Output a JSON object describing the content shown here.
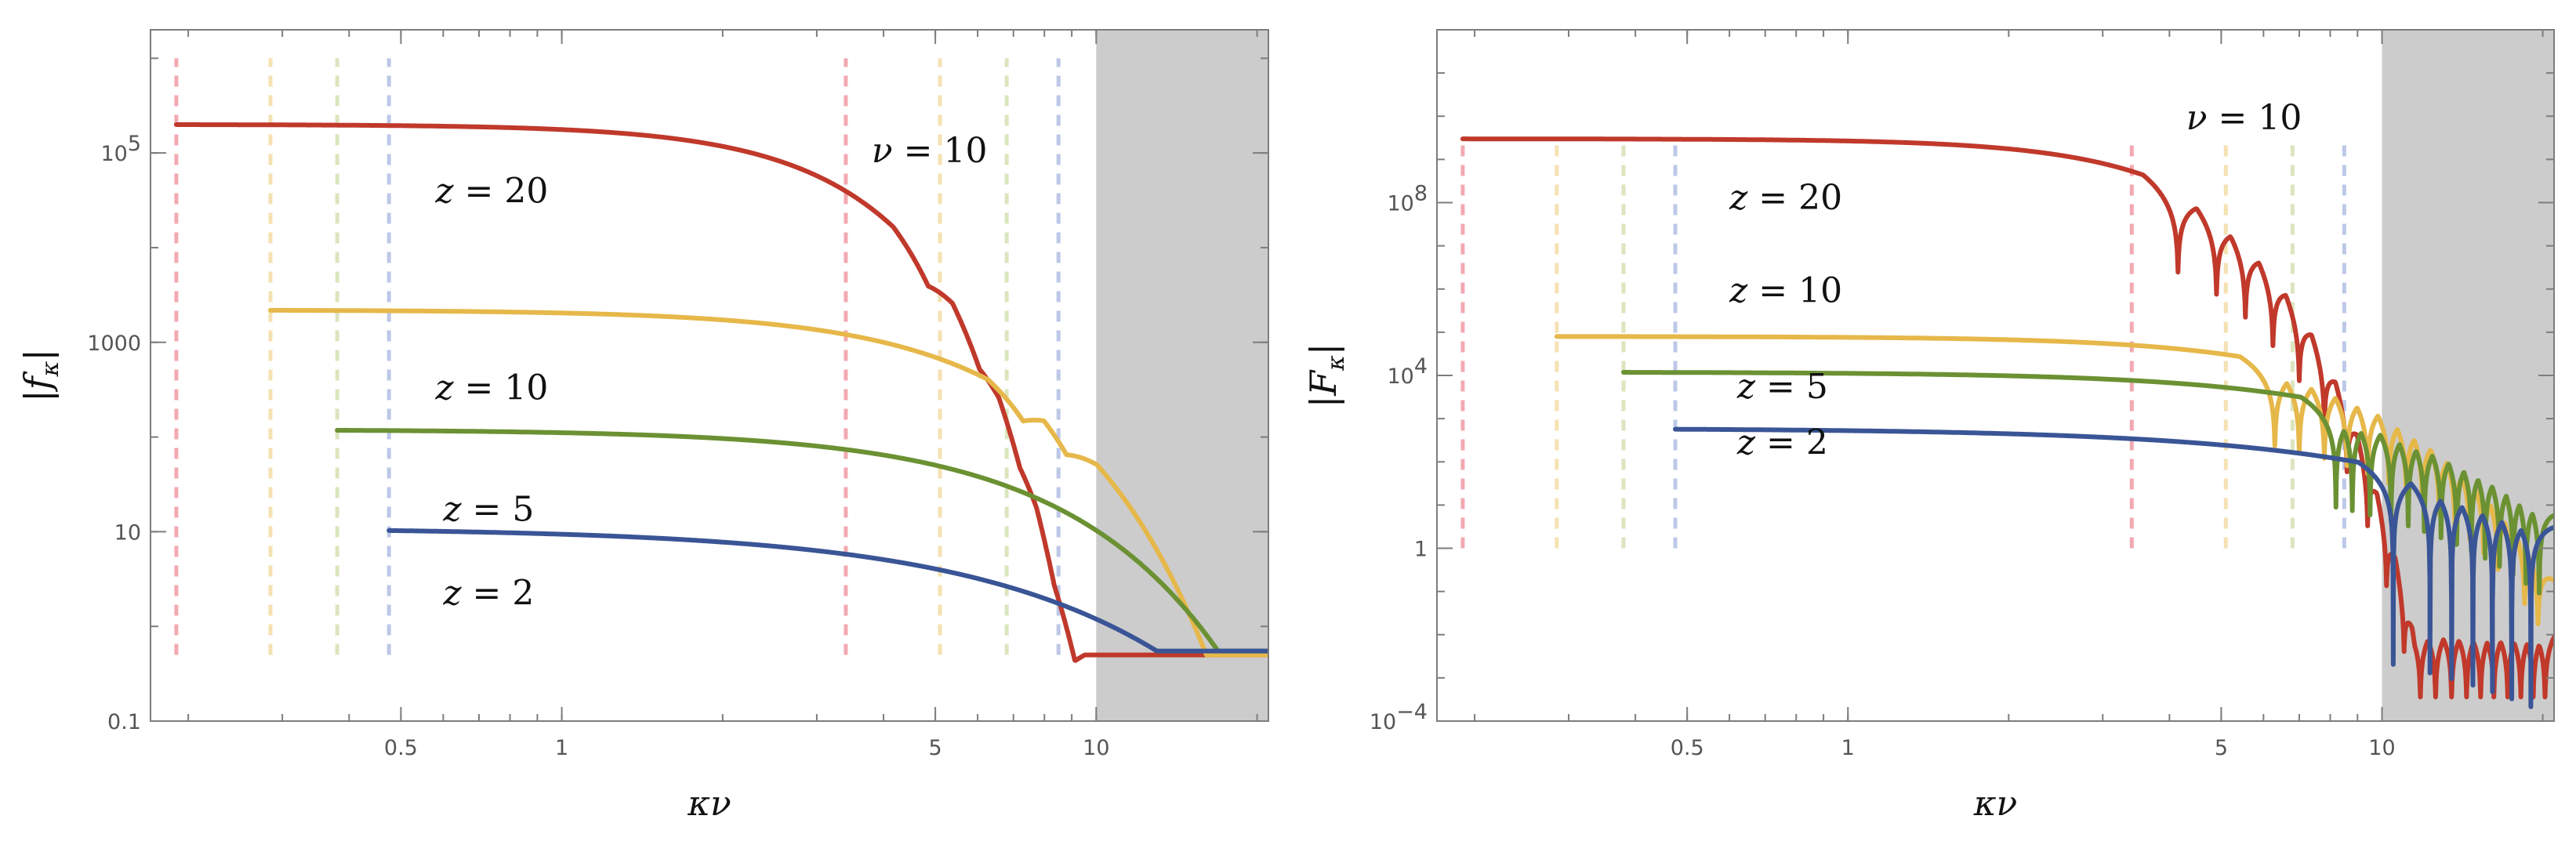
{
  "chart_data": [
    {
      "type": "line",
      "xscale": "log",
      "yscale": "log",
      "xlim": [
        0.17,
        21
      ],
      "ylim": [
        0.1,
        2000000
      ],
      "xticks": [
        {
          "v": 0.5,
          "label": "0.5"
        },
        {
          "v": 1,
          "label": "1"
        },
        {
          "v": 5,
          "label": "5"
        },
        {
          "v": 10,
          "label": "10"
        }
      ],
      "yticks": [
        {
          "v": 0.1,
          "label": "0.1"
        },
        {
          "v": 10,
          "label": "10"
        },
        {
          "v": 1000,
          "label": "1000"
        },
        {
          "v": 100000,
          "label": "10",
          "sup": "5"
        }
      ],
      "xlabel": {
        "a": "κ",
        "b": "ν"
      },
      "ylabel": {
        "bar": "|",
        "sym": "f",
        "sub": "κ"
      },
      "annotation": {
        "lhs": "ν",
        "eq": " = ",
        "rhs": "10",
        "x": 3.8,
        "y": 80000
      },
      "shaded_region": {
        "x_from": 10,
        "x_to": 21,
        "color": "#cccccc"
      },
      "vlines": [
        {
          "x": 0.19,
          "color": "#f2a0aa",
          "y_from": 0.5,
          "y_to": 1000000
        },
        {
          "x": 0.285,
          "color": "#f5deaa",
          "y_from": 0.5,
          "y_to": 1000000
        },
        {
          "x": 0.38,
          "color": "#d8e3b8",
          "y_from": 0.5,
          "y_to": 1000000
        },
        {
          "x": 0.475,
          "color": "#b6c3e6",
          "y_from": 0.5,
          "y_to": 1000000
        },
        {
          "x": 3.4,
          "color": "#f2a0aa",
          "y_from": 0.5,
          "y_to": 1000000
        },
        {
          "x": 5.1,
          "color": "#f5deaa",
          "y_from": 0.5,
          "y_to": 1000000
        },
        {
          "x": 6.8,
          "color": "#d8e3b8",
          "y_from": 0.5,
          "y_to": 1000000
        },
        {
          "x": 8.5,
          "color": "#b6c3e6",
          "y_from": 0.5,
          "y_to": 1000000
        }
      ],
      "series": [
        {
          "name": "z = 20",
          "label": {
            "lhs": "z",
            "eq": " = ",
            "rhs": "20",
            "x": 0.58,
            "y": 30000
          },
          "color": "#c0392b",
          "x_start": 0.19,
          "amp": 200000,
          "cutoff": 2.7,
          "shape": 2.1,
          "zeros": [
            4.85,
            6.05,
            7.2,
            8.35
          ],
          "trough": 0.6,
          "tail": 0.5
        },
        {
          "name": "z = 10",
          "label": {
            "lhs": "z",
            "eq": " = ",
            "rhs": "10",
            "x": 0.58,
            "y": 250
          },
          "color": "#e6b84a",
          "x_start": 0.285,
          "amp": 2200,
          "cutoff": 4.6,
          "shape": 1.7,
          "zeros": [
            7.3,
            8.8
          ],
          "trough": 0.6,
          "tail": 0.5
        },
        {
          "name": "z = 5",
          "label": {
            "lhs": "z",
            "eq": " = ",
            "rhs": "5",
            "x": 0.6,
            "y": 13
          },
          "color": "#6b9133",
          "x_start": 0.38,
          "amp": 120,
          "cutoff": 5.5,
          "shape": 1.5,
          "zeros": [],
          "trough": 1,
          "tail": 0.55
        },
        {
          "name": "z = 2",
          "label": {
            "lhs": "z",
            "eq": " = ",
            "rhs": "2",
            "x": 0.6,
            "y": 1.7
          },
          "color": "#3a5596",
          "x_start": 0.475,
          "amp": 11,
          "cutoff": 5,
          "shape": 1.15,
          "zeros": [],
          "trough": 1,
          "tail": 0.55
        }
      ]
    },
    {
      "type": "line",
      "xscale": "log",
      "yscale": "log",
      "xlim": [
        0.17,
        21
      ],
      "ylim": [
        0.0001,
        1000000000000
      ],
      "xticks": [
        {
          "v": 0.5,
          "label": "0.5"
        },
        {
          "v": 1,
          "label": "1"
        },
        {
          "v": 5,
          "label": "5"
        },
        {
          "v": 10,
          "label": "10"
        }
      ],
      "yticks": [
        {
          "v": 0.0001,
          "label": "10",
          "sup": "−4"
        },
        {
          "v": 1,
          "label": "1"
        },
        {
          "v": 10000,
          "label": "10",
          "sup": "4"
        },
        {
          "v": 100000000,
          "label": "10",
          "sup": "8"
        }
      ],
      "xlabel": {
        "a": "κ",
        "b": "ν"
      },
      "ylabel": {
        "bar": "|",
        "sym": "F",
        "sub": "κ"
      },
      "annotation": {
        "lhs": "ν",
        "eq": " = ",
        "rhs": "10",
        "x": 4.3,
        "y": 5000000000
      },
      "shaded_region": {
        "x_from": 10,
        "x_to": 21,
        "color": "#cccccc"
      },
      "vlines": [
        {
          "x": 0.19,
          "color": "#f2a0aa",
          "y_from": 1,
          "y_to": 3000000000
        },
        {
          "x": 0.285,
          "color": "#f5deaa",
          "y_from": 1,
          "y_to": 3000000000
        },
        {
          "x": 0.38,
          "color": "#d8e3b8",
          "y_from": 1,
          "y_to": 3000000000
        },
        {
          "x": 0.475,
          "color": "#b6c3e6",
          "y_from": 1,
          "y_to": 3000000000
        },
        {
          "x": 3.4,
          "color": "#f2a0aa",
          "y_from": 1,
          "y_to": 3000000000
        },
        {
          "x": 5.1,
          "color": "#f5deaa",
          "y_from": 1,
          "y_to": 3000000000
        },
        {
          "x": 6.8,
          "color": "#d8e3b8",
          "y_from": 1,
          "y_to": 3000000000
        },
        {
          "x": 8.5,
          "color": "#b6c3e6",
          "y_from": 1,
          "y_to": 3000000000
        }
      ],
      "series": [
        {
          "name": "z = 20",
          "label": {
            "lhs": "z",
            "eq": " = ",
            "rhs": "20",
            "x": 0.6,
            "y": 70000000
          },
          "color": "#c0392b",
          "x_start": 0.19,
          "amp": 3000000000,
          "cutoff": 2.65,
          "shape": 2.2,
          "zeros": [
            4.15,
            4.9,
            5.55,
            6.25,
            7,
            7.8,
            8.6,
            9.4,
            10.2,
            11,
            11.8,
            12.6,
            13.5,
            14.4,
            15.3,
            16.2,
            17.2,
            18.2,
            19.2,
            20.2
          ],
          "trough": 0.012,
          "tail": 0.03
        },
        {
          "name": "z = 10",
          "label": {
            "lhs": "z",
            "eq": " = ",
            "rhs": "10",
            "x": 0.6,
            "y": 500000
          },
          "color": "#e6b84a",
          "x_start": 0.285,
          "amp": 80000,
          "cutoff": 5.2,
          "shape": 1.8,
          "zeros": [
            6.3,
            7,
            7.8,
            8.6,
            9.4,
            10.3,
            11.1,
            11.9,
            12.8,
            13.7,
            14.6,
            15.5,
            16.5,
            17.5,
            18.5,
            19.6
          ],
          "trough": 0.012,
          "tail": 0.03
        },
        {
          "name": "z = 5",
          "label": {
            "lhs": "z",
            "eq": " = ",
            "rhs": "5",
            "x": 0.62,
            "y": 3000
          },
          "color": "#6b9133",
          "x_start": 0.38,
          "amp": 12000,
          "cutoff": 5.8,
          "shape": 1.5,
          "zeros": [
            8.2,
            8.8,
            9.5,
            10.4,
            11.2,
            12,
            12.9,
            13.8,
            14.7,
            15.6,
            16.6,
            17.6,
            18.6,
            19.7
          ],
          "trough": 0.004,
          "tail": 0.03
        },
        {
          "name": "z = 2",
          "label": {
            "lhs": "z",
            "eq": " = ",
            "rhs": "2",
            "x": 0.62,
            "y": 150
          },
          "color": "#3a5596",
          "x_start": 0.475,
          "amp": 600,
          "cutoff": 5.5,
          "shape": 1.2,
          "zeros": [
            10.5,
            12.3,
            13.5,
            14.8,
            16.1,
            17.5,
            19
          ],
          "trough": 3e-05,
          "tail": 0.03
        }
      ]
    }
  ]
}
